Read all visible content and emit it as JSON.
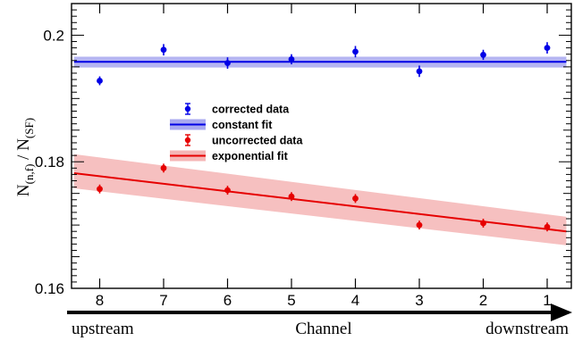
{
  "chart_data": {
    "type": "scatter",
    "title": "",
    "xlabel": "Channel",
    "ylabel": "Ṅ(n,f) / Ṅ(SF)",
    "ylabel_parts": {
      "n1": "N",
      "s1": "(n,f)",
      "sep": " / ",
      "n2": "N",
      "s2": "(SF)"
    },
    "x_ticks": [
      "8",
      "7",
      "6",
      "5",
      "4",
      "3",
      "2",
      "1"
    ],
    "ylim": [
      0.16,
      0.205
    ],
    "y_ticks": [
      0.16,
      0.18,
      0.2
    ],
    "y_tick_labels": [
      "0.16",
      "0.18",
      "0.2"
    ],
    "arrow_left_label": "upstream",
    "arrow_center_label": "Channel",
    "arrow_right_label": "downstream",
    "series": [
      {
        "name": "corrected data",
        "color": "#0000e6",
        "x": [
          8,
          7,
          6,
          5,
          4,
          3,
          2,
          1
        ],
        "y": [
          0.1928,
          0.1977,
          0.1956,
          0.1962,
          0.1974,
          0.1943,
          0.1969,
          0.198
        ],
        "err": [
          0.0007,
          0.0009,
          0.0009,
          0.0008,
          0.0009,
          0.0009,
          0.0008,
          0.0009
        ]
      },
      {
        "name": "uncorrected data",
        "color": "#e60000",
        "x": [
          8,
          7,
          6,
          5,
          4,
          3,
          2,
          1
        ],
        "y": [
          0.1757,
          0.179,
          0.1755,
          0.1745,
          0.1742,
          0.17,
          0.1703,
          0.1697
        ],
        "err": [
          0.0007,
          0.0007,
          0.0007,
          0.0007,
          0.0007,
          0.0007,
          0.0007,
          0.0007
        ]
      }
    ],
    "fits": [
      {
        "name": "constant fit",
        "color": "#0000e6",
        "band_color": "#a8a8f0",
        "x": [
          8.4,
          0.7
        ],
        "y": [
          0.1958,
          0.1958
        ],
        "band_upper": [
          0.1966,
          0.1966
        ],
        "band_lower": [
          0.1949,
          0.1949
        ]
      },
      {
        "name": "exponential fit",
        "color": "#e60000",
        "band_color": "#f5b5b5",
        "x": [
          8.4,
          0.7
        ],
        "y": [
          0.1782,
          0.169
        ],
        "band_upper": [
          0.1812,
          0.1713
        ],
        "band_lower": [
          0.1758,
          0.1668
        ]
      }
    ],
    "legend": [
      {
        "label": "corrected data",
        "kind": "marker",
        "color": "#0000e6"
      },
      {
        "label": "constant fit",
        "kind": "band",
        "color": "#0000e6",
        "band_color": "#a8a8f0"
      },
      {
        "label": "uncorrected data",
        "kind": "marker",
        "color": "#e60000"
      },
      {
        "label": "exponential fit",
        "kind": "band",
        "color": "#e60000",
        "band_color": "#f5b5b5"
      }
    ],
    "legend_position": "center-left",
    "grid": false
  }
}
